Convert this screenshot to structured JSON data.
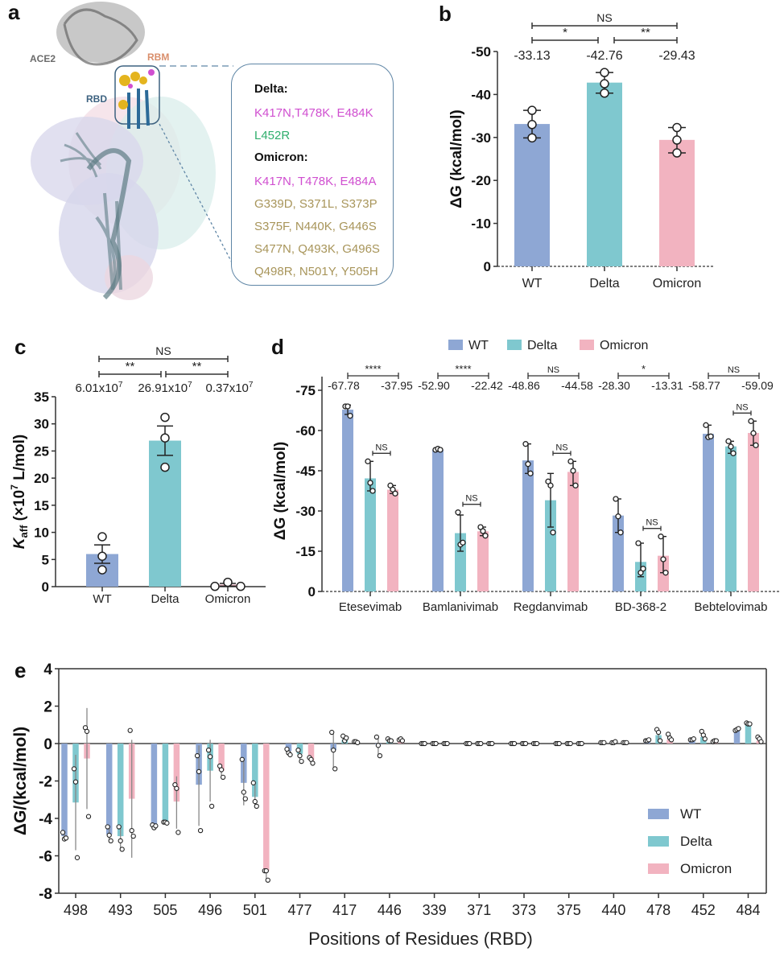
{
  "colors": {
    "WT": "#8ea7d4",
    "Delta": "#7fc8cf",
    "Omicron": "#f2b3c0",
    "axis": "#333333",
    "pink_mut": "#d04fd0",
    "green_mut": "#2fae6c",
    "gold_mut": "#a8955a"
  },
  "panel_a": {
    "letter": "a",
    "labels": {
      "ace2": "ACE2",
      "rbm": "RBM",
      "rbd": "RBD"
    },
    "delta_header": "Delta:",
    "delta_lines": [
      {
        "text": "K417N,T478K, E484K",
        "color": "pink_mut"
      },
      {
        "text": "L452R",
        "color": "green_mut"
      }
    ],
    "omicron_header": "Omicron:",
    "omicron_lines": [
      {
        "text": "K417N, T478K, E484A",
        "color": "pink_mut"
      },
      {
        "text": "G339D, S371L, S373P",
        "color": "gold_mut"
      },
      {
        "text": "S375F, N440K, G446S",
        "color": "gold_mut"
      },
      {
        "text": "S477N, Q493K, G496S",
        "color": "gold_mut"
      },
      {
        "text": "Q498R, N501Y, Y505H",
        "color": "gold_mut"
      }
    ]
  },
  "chart_data": [
    {
      "panel": "b",
      "type": "bar",
      "categories": [
        "WT",
        "Delta",
        "Omicron"
      ],
      "values": [
        -33.13,
        -42.76,
        -29.43
      ],
      "value_labels": [
        "-33.13",
        "-42.76",
        "-29.43"
      ],
      "points": [
        [
          -36.3,
          -33.0,
          -29.9
        ],
        [
          -45.1,
          -42.5,
          -40.3
        ],
        [
          -32.3,
          -29.4,
          -26.4
        ]
      ],
      "error": [
        [
          -36.3,
          -29.9
        ],
        [
          -45.1,
          -40.3
        ],
        [
          -32.3,
          -26.4
        ]
      ],
      "ylabel": "ΔG (kcal/mol)",
      "ylim": [
        0,
        -50
      ],
      "yticks": [
        0,
        -10,
        -20,
        -30,
        -40,
        -50
      ],
      "significance": [
        {
          "from": 0,
          "to": 2,
          "label": "NS"
        },
        {
          "from": 0,
          "to": 1,
          "label": "*"
        },
        {
          "from": 1,
          "to": 2,
          "label": "**"
        }
      ]
    },
    {
      "panel": "c",
      "type": "bar",
      "categories": [
        "WT",
        "Delta",
        "Omicron"
      ],
      "values": [
        6.01,
        26.91,
        0.37
      ],
      "value_labels": [
        {
          "base": "6.01x10",
          "exp": "7"
        },
        {
          "base": "26.91x10",
          "exp": "7"
        },
        {
          "base": "0.37x10",
          "exp": "7"
        }
      ],
      "points": [
        [
          9.2,
          5.6,
          3.1
        ],
        [
          31.2,
          27.4,
          22.0
        ],
        [
          0.05,
          0.8,
          0.05
        ]
      ],
      "error": [
        [
          4.3,
          7.7
        ],
        [
          24.2,
          29.6
        ],
        [
          0.1,
          0.6
        ]
      ],
      "ylabel": {
        "k": "K",
        "sub": "aff",
        "rest1": " (×10",
        "sup": "7",
        "rest2": " L/mol)"
      },
      "ylim": [
        0,
        35
      ],
      "yticks": [
        0,
        5,
        10,
        15,
        20,
        25,
        30,
        35
      ],
      "significance": [
        {
          "from": 0,
          "to": 2,
          "label": "NS"
        },
        {
          "from": 0,
          "to": 1,
          "label": "**"
        },
        {
          "from": 1,
          "to": 2,
          "label": "**"
        }
      ]
    },
    {
      "panel": "d",
      "type": "bar",
      "categories": [
        "Etesevimab",
        "Bamlanivimab",
        "Regdanvimab",
        "BD-368-2",
        "Bebtelovimab"
      ],
      "series": [
        {
          "name": "WT",
          "values": [
            -67.78,
            -52.9,
            -48.86,
            -28.3,
            -58.77
          ],
          "points": [
            [
              -69,
              -69,
              -65.5
            ],
            [
              -52.8,
              -53.2,
              -52.8
            ],
            [
              -55,
              -47.5,
              -44
            ],
            [
              -34.5,
              -28,
              -22
            ],
            [
              -62,
              -57.5,
              -57.8
            ]
          ],
          "error": [
            [
              -66,
              -69.5
            ],
            [
              -52.7,
              -53.3
            ],
            [
              -44,
              -55
            ],
            [
              -22,
              -34.5
            ],
            [
              -57.5,
              -62
            ]
          ]
        },
        {
          "name": "Delta",
          "values": [
            -42.16,
            -21.75,
            -34.01,
            -11.02,
            -54.09
          ],
          "points": [
            [
              -48.5,
              -40.5,
              -37.5
            ],
            [
              -29.5,
              -17.5,
              -18.2
            ],
            [
              -41,
              -39.5,
              -22
            ],
            [
              -18,
              -7,
              -8.5
            ],
            [
              -56,
              -54,
              -51.5
            ]
          ],
          "error": [
            [
              -37.5,
              -48.5
            ],
            [
              -15,
              -28.5
            ],
            [
              -24,
              -44
            ],
            [
              -5.5,
              -18
            ],
            [
              -51.5,
              -56
            ]
          ]
        },
        {
          "name": "Omicron",
          "values": [
            -37.95,
            -22.42,
            -44.58,
            -13.31,
            -59.09
          ],
          "points": [
            [
              -39.5,
              -38,
              -36.5
            ],
            [
              -24,
              -22.5,
              -20.8
            ],
            [
              -48.5,
              -45,
              -39.5
            ],
            [
              -20.5,
              -12,
              -7
            ],
            [
              -63.5,
              -59,
              -54.5
            ]
          ],
          "error": [
            [
              -36.5,
              -39.5
            ],
            [
              -20.8,
              -24
            ],
            [
              -39.5,
              -48.5
            ],
            [
              -7,
              -20.5
            ],
            [
              -54.5,
              -63.5
            ]
          ]
        }
      ],
      "value_labels": [
        [
          "-67.78",
          "-37.95"
        ],
        [
          "-52.90",
          "-22.42"
        ],
        [
          "-48.86",
          "-44.58"
        ],
        [
          "-28.30",
          "-13.31"
        ],
        [
          "-58.77",
          "-59.09"
        ]
      ],
      "group_significance": [
        "****",
        "****",
        "NS",
        "*",
        "NS"
      ],
      "pair_significance": [
        "NS",
        "NS",
        "NS",
        "NS",
        "NS"
      ],
      "ylabel": "ΔG (kcal/mol)",
      "ylim": [
        0,
        -75
      ],
      "yticks": [
        0,
        -15,
        -30,
        -45,
        -60,
        -75
      ],
      "legend": "top"
    },
    {
      "panel": "e",
      "type": "bar",
      "categories": [
        "498",
        "493",
        "505",
        "496",
        "501",
        "477",
        "417",
        "446",
        "339",
        "371",
        "373",
        "375",
        "440",
        "478",
        "452",
        "484"
      ],
      "series": [
        {
          "name": "WT",
          "values": [
            -4.95,
            -4.85,
            -4.4,
            -2.2,
            -2.1,
            -0.4,
            -0.35,
            -0.05,
            0,
            0,
            0,
            0,
            0.05,
            0.15,
            0.2,
            0.75
          ],
          "points": [
            [
              -4.75,
              -5.1,
              -5.05
            ],
            [
              -4.45,
              -4.9,
              -5.2
            ],
            [
              -4.35,
              -4.5,
              -4.4
            ],
            [
              -0.65,
              -1.5,
              -4.65
            ],
            [
              -0.85,
              -2.6,
              -2.95
            ],
            [
              -0.3,
              -0.5,
              -0.6
            ],
            [
              0.6,
              -0.35,
              -1.35
            ],
            [
              0.35,
              -0.1,
              -0.65
            ],
            [
              0,
              0,
              0
            ],
            [
              0,
              0,
              0
            ],
            [
              0,
              0,
              0
            ],
            [
              0,
              0,
              0
            ],
            [
              0.05,
              0.05,
              0.05
            ],
            [
              0.15,
              0.15,
              0.2
            ],
            [
              0.2,
              0.2,
              0.25
            ],
            [
              0.7,
              0.75,
              0.8
            ]
          ],
          "error": [
            [
              -4.7,
              -5.2
            ],
            [
              -4.4,
              -5.3
            ],
            [
              -4.3,
              -4.55
            ],
            [
              -0.1,
              -4.4
            ],
            [
              -0.8,
              -3.3
            ],
            [
              -0.3,
              -0.6
            ],
            [
              0.6,
              -1.35
            ],
            [
              0.35,
              -0.65
            ],
            [
              0,
              0
            ],
            [
              0,
              0
            ],
            [
              0,
              0
            ],
            [
              0,
              0
            ],
            [
              0.05,
              0.05
            ],
            [
              0.2,
              0.15
            ],
            [
              0.25,
              0.2
            ],
            [
              0.8,
              0.7
            ]
          ]
        },
        {
          "name": "Delta",
          "values": [
            -3.15,
            -4.95,
            -4.2,
            -1.45,
            -2.85,
            -0.55,
            0.2,
            0.1,
            0,
            0,
            0,
            0,
            0.05,
            0.45,
            0.35,
            1.05
          ],
          "points": [
            [
              -1.35,
              -2.05,
              -6.1
            ],
            [
              -4.45,
              -5.2,
              -5.65
            ],
            [
              -4.2,
              -4.2,
              -4.25
            ],
            [
              -0.35,
              -0.7,
              -3.35
            ],
            [
              -2.1,
              -3.1,
              -3.35
            ],
            [
              -0.35,
              -0.65,
              -0.95
            ],
            [
              0.4,
              0.15,
              0.3
            ],
            [
              0.25,
              0.15,
              0.15
            ],
            [
              0,
              0,
              0
            ],
            [
              0,
              0,
              0
            ],
            [
              0,
              0,
              0
            ],
            [
              0,
              0,
              0
            ],
            [
              0.05,
              0.05,
              0.1
            ],
            [
              0.75,
              0.6,
              0.15
            ],
            [
              0.65,
              0.45,
              0.25
            ],
            [
              1.1,
              1.05,
              1.05
            ]
          ],
          "error": [
            [
              -0.6,
              -5.7
            ],
            [
              -4.45,
              -5.65
            ],
            [
              -4.15,
              -4.25
            ],
            [
              0.2,
              -3.1
            ],
            [
              -2.1,
              -3.45
            ],
            [
              -0.35,
              -0.95
            ],
            [
              0.4,
              0.1
            ],
            [
              0.25,
              0.1
            ],
            [
              0,
              0
            ],
            [
              0,
              0
            ],
            [
              0,
              0
            ],
            [
              0,
              0
            ],
            [
              0.1,
              0.05
            ],
            [
              0.8,
              0.1
            ],
            [
              0.7,
              0.2
            ],
            [
              1.1,
              1.0
            ]
          ]
        },
        {
          "name": "Omicron",
          "values": [
            -0.8,
            -2.95,
            -3.1,
            -1.45,
            -6.8,
            -0.9,
            0.1,
            0.2,
            0,
            0,
            0,
            0,
            0.05,
            0.2,
            0.15,
            0.15
          ],
          "points": [
            [
              0.85,
              0.65,
              -3.9
            ],
            [
              0.7,
              -4.65,
              -4.95
            ],
            [
              -2.2,
              -2.4,
              -4.75
            ],
            [
              -1.2,
              -1.4,
              -1.8
            ],
            [
              -6.8,
              -6.8,
              -7.3
            ],
            [
              -0.75,
              -0.85,
              -1.05
            ],
            [
              0.1,
              0.1,
              0.05
            ],
            [
              0.2,
              0.25,
              0.15
            ],
            [
              0,
              0,
              0
            ],
            [
              0,
              0,
              0
            ],
            [
              0,
              0,
              0
            ],
            [
              0,
              0,
              0
            ],
            [
              0.05,
              0.05,
              0.05
            ],
            [
              0.5,
              0.3,
              0.2
            ],
            [
              0.1,
              0.15,
              0.15
            ],
            [
              0.35,
              0.25,
              0.1
            ]
          ],
          "error": [
            [
              1.9,
              -3.5
            ],
            [
              0.2,
              -6.1
            ],
            [
              -1.75,
              -4.55
            ],
            [
              -1.15,
              -1.85
            ],
            [
              -6.75,
              -7.35
            ],
            [
              -0.75,
              -1.05
            ],
            [
              0.1,
              0.05
            ],
            [
              0.25,
              0.15
            ],
            [
              0,
              0
            ],
            [
              0,
              0
            ],
            [
              0,
              0
            ],
            [
              0,
              0
            ],
            [
              0.05,
              0.05
            ],
            [
              0.5,
              0.2
            ],
            [
              0.15,
              0.1
            ],
            [
              0.35,
              0.1
            ]
          ]
        }
      ],
      "ylabel": "ΔG/(kcal/mol)",
      "xlabel": "Positions of  Residues (RBD)",
      "ylim": [
        -8,
        4
      ],
      "yticks": [
        4,
        2,
        0,
        -2,
        -4,
        -6,
        -8
      ],
      "legend": "bottom-right"
    }
  ]
}
